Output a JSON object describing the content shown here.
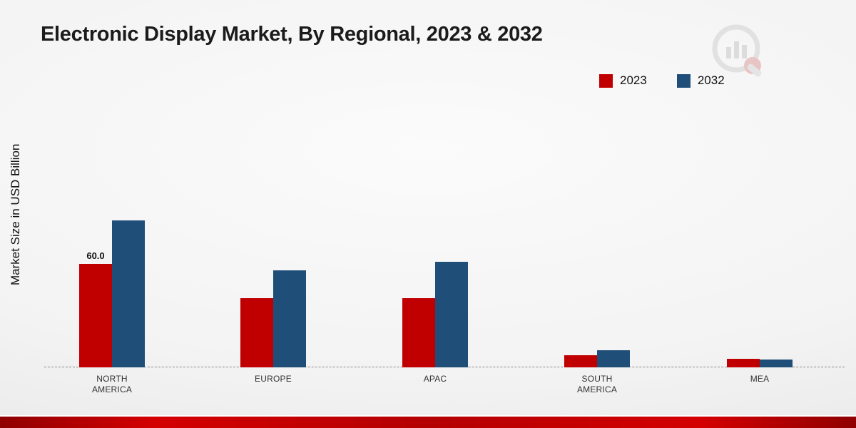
{
  "title": "Electronic Display Market, By Regional, 2023 & 2032",
  "ylabel": "Market Size in USD Billion",
  "legend": [
    {
      "label": "2023",
      "color": "#c00000"
    },
    {
      "label": "2032",
      "color": "#1f4e79"
    }
  ],
  "chart_data": {
    "type": "bar",
    "title": "Electronic Display Market, By Regional, 2023 & 2032",
    "xlabel": "",
    "ylabel": "Market Size in USD Billion",
    "categories": [
      "NORTH AMERICA",
      "EUROPE",
      "APAC",
      "SOUTH AMERICA",
      "MEA"
    ],
    "series": [
      {
        "name": "2023",
        "color": "#c00000",
        "values": [
          60.0,
          40,
          40,
          7,
          5
        ]
      },
      {
        "name": "2032",
        "color": "#1f4e79",
        "values": [
          85,
          56,
          61,
          10,
          4.5
        ]
      }
    ],
    "annotations": [
      {
        "category": "NORTH AMERICA",
        "series": "2023",
        "text": "60.0"
      }
    ],
    "ylim": [
      0,
      95
    ],
    "grid": false,
    "legend_position": "top-right",
    "baseline_style": "dashed"
  },
  "colors": {
    "footer_band": "#c00000",
    "background": "#f3f3f3"
  },
  "icons": {
    "brand_logo": "bar-chart-magnifier-logo"
  }
}
